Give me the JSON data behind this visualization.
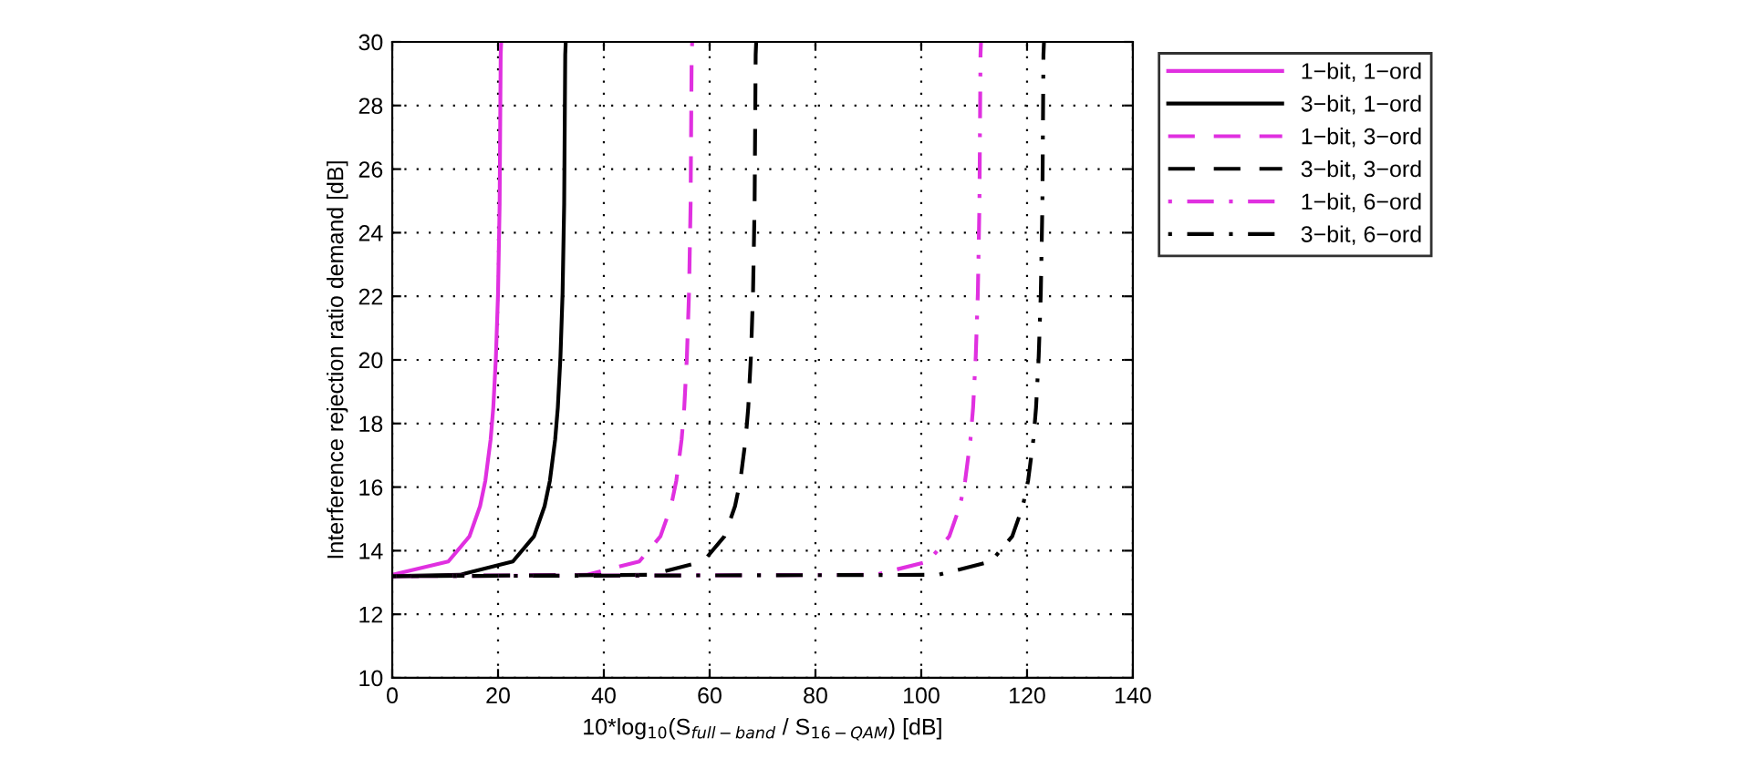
{
  "chart_data": {
    "type": "line",
    "xlabel": "10*log$_{10}$(S$_{full−band}$ / S$_{16−QAM}$) [dB]",
    "ylabel": "Interference rejection ratio demand [dB]",
    "xlim": [
      0,
      140
    ],
    "xticks": [
      0,
      20,
      40,
      60,
      80,
      100,
      120,
      140
    ],
    "ylim": [
      10,
      30
    ],
    "yticks": [
      10,
      12,
      14,
      16,
      18,
      20,
      22,
      24,
      26,
      28,
      30
    ],
    "grid": true,
    "legend": "top right",
    "marker": "none",
    "series": [
      {
        "name": "1−bit, 1−ord",
        "color": "#e030e0",
        "line_style": "solid",
        "x": [
          0,
          10.6,
          14.6,
          16.6,
          17.6,
          18.6,
          19.1,
          19.6,
          20.0,
          20.3,
          20.5,
          20.6
        ],
        "values": [
          13.24,
          13.66,
          14.45,
          15.4,
          16.2,
          17.5,
          18.5,
          20.1,
          22.1,
          24.9,
          29.6,
          30
        ]
      },
      {
        "name": "3−bit, 1−ord",
        "color": "#000000",
        "line_style": "solid",
        "x": [
          0,
          12.8,
          22.8,
          26.8,
          28.8,
          29.8,
          30.8,
          31.3,
          31.8,
          32.2,
          32.5,
          32.7,
          32.8
        ],
        "values": [
          13.2,
          13.24,
          13.66,
          14.45,
          15.4,
          16.2,
          17.5,
          18.5,
          20.1,
          22.1,
          24.9,
          29.6,
          30
        ]
      },
      {
        "name": "1−bit, 3−ord",
        "color": "#e030e0",
        "line_style": "dashed",
        "x": [
          0,
          36.7,
          46.7,
          50.7,
          52.7,
          53.7,
          54.7,
          55.2,
          55.7,
          56.1,
          56.4,
          56.6,
          56.7
        ],
        "values": [
          13.2,
          13.24,
          13.66,
          14.45,
          15.4,
          16.2,
          17.5,
          18.5,
          20.1,
          22.1,
          24.9,
          29.6,
          30
        ]
      },
      {
        "name": "3−bit, 3−ord",
        "color": "#000000",
        "line_style": "dashed",
        "x": [
          0,
          48.8,
          58.8,
          62.8,
          64.8,
          65.8,
          66.8,
          67.3,
          67.8,
          68.2,
          68.5,
          68.7,
          68.8
        ],
        "values": [
          13.2,
          13.24,
          13.66,
          14.45,
          15.4,
          16.2,
          17.5,
          18.5,
          20.1,
          22.1,
          24.9,
          29.6,
          30
        ]
      },
      {
        "name": "1−bit, 6−ord",
        "color": "#e030e0",
        "line_style": "dashdot",
        "x": [
          0,
          91.3,
          101.3,
          105.3,
          107.3,
          108.3,
          109.3,
          109.8,
          110.3,
          110.7,
          111.0,
          111.2,
          111.3
        ],
        "values": [
          13.2,
          13.24,
          13.66,
          14.45,
          15.4,
          16.2,
          17.5,
          18.5,
          20.1,
          22.1,
          24.9,
          29.6,
          30
        ]
      },
      {
        "name": "3−bit, 6−ord",
        "color": "#000000",
        "line_style": "dashdot",
        "x": [
          0,
          103.2,
          113.2,
          117.2,
          119.2,
          120.2,
          121.2,
          121.7,
          122.2,
          122.6,
          122.9,
          123.1,
          123.2
        ],
        "values": [
          13.2,
          13.24,
          13.66,
          14.45,
          15.4,
          16.2,
          17.5,
          18.5,
          20.1,
          22.1,
          24.9,
          29.6,
          30
        ]
      }
    ]
  }
}
